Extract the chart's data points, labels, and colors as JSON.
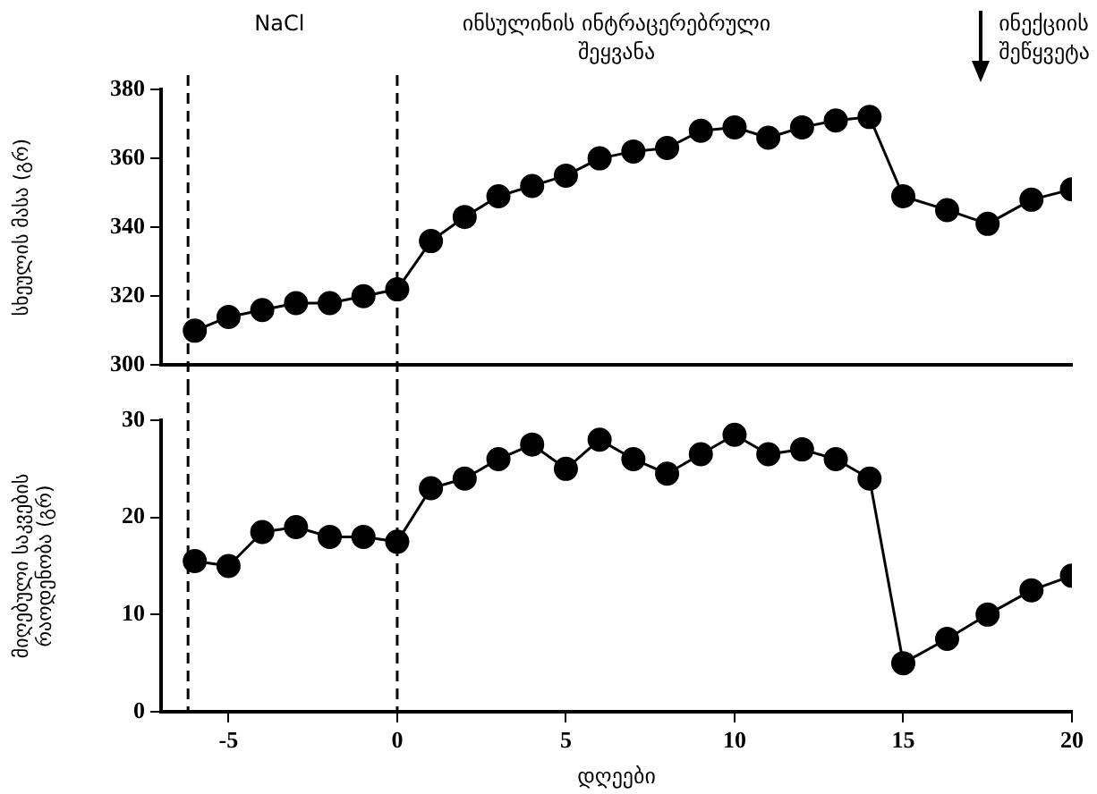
{
  "chart_data": [
    {
      "type": "line",
      "ylabel": "სხეულის მასა (გრ)",
      "tick_labels": "y",
      "marker": "circle",
      "grid": false,
      "legend": false,
      "x": [
        -6,
        -5,
        -4,
        -3,
        -2,
        -1,
        0,
        1,
        2,
        3,
        4,
        5,
        6,
        7,
        8,
        9,
        10,
        11,
        12,
        13,
        14,
        15,
        16.3,
        17.5,
        18.8,
        20
      ],
      "series": [
        {
          "color": "#000000",
          "values": [
            310,
            314,
            316,
            318,
            318,
            320,
            322,
            336,
            343,
            349,
            352,
            355,
            360,
            362,
            363,
            368,
            369,
            366,
            369,
            371,
            372,
            349,
            345,
            341,
            348,
            351
          ]
        }
      ],
      "xlim": [
        -7,
        20
      ],
      "ylim": [
        300,
        380
      ],
      "yticks": [
        300,
        320,
        340,
        360,
        380
      ],
      "ref_lines": [
        {
          "axis": "x",
          "value": -6.2,
          "line_style": "dashed",
          "color": "#000000"
        },
        {
          "axis": "x",
          "value": 0,
          "line_style": "dashed",
          "color": "#000000"
        }
      ],
      "annotations": [
        "NaCl",
        "ინსულინის ინტრაცერებრული შეყვანა",
        "ინექციის შეწყვეტა"
      ]
    },
    {
      "type": "line",
      "ylabel": "მიღებული საკვების რაოდენობა (გრ)",
      "xlabel": "დღეები",
      "marker": "circle",
      "grid": false,
      "legend": false,
      "x": [
        -6,
        -5,
        -4,
        -3,
        -2,
        -1,
        0,
        1,
        2,
        3,
        4,
        5,
        6,
        7,
        8,
        9,
        10,
        11,
        12,
        13,
        14,
        15,
        16.3,
        17.5,
        18.8,
        20
      ],
      "series": [
        {
          "color": "#000000",
          "values": [
            15.5,
            15,
            18.5,
            19,
            18,
            18,
            17.5,
            23,
            24,
            26,
            27.5,
            25,
            28,
            26,
            24.5,
            26.5,
            28.5,
            26.5,
            27,
            26,
            24,
            5,
            7.5,
            10,
            12.5,
            14
          ]
        }
      ],
      "xlim": [
        -7,
        20
      ],
      "xticks": [
        -5,
        0,
        5,
        10,
        15,
        20
      ],
      "ylim": [
        0,
        30
      ],
      "yticks": [
        0,
        10,
        20,
        30
      ],
      "ref_lines": [
        {
          "axis": "x",
          "value": -6.2,
          "line_style": "dashed",
          "color": "#000000"
        },
        {
          "axis": "x",
          "value": 0,
          "line_style": "dashed",
          "color": "#000000"
        }
      ]
    }
  ]
}
